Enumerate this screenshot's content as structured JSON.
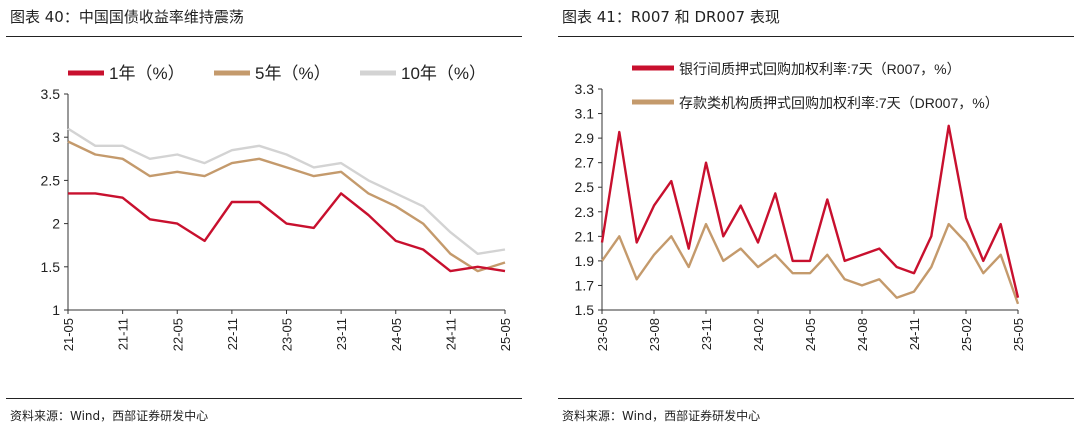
{
  "charts": [
    {
      "title": "图表 40：中国国债收益率维持震荡",
      "source": "资料来源：Wind，西部证券研发中心"
    },
    {
      "title": "图表 41：R007 和 DR007 表现",
      "source": "资料来源：Wind，西部证券研发中心"
    }
  ],
  "chart_data": [
    {
      "type": "line",
      "title": "中国国债收益率维持震荡",
      "xlabel": "",
      "ylabel": "",
      "ylim": [
        1,
        3.5
      ],
      "yticks": [
        "1",
        "1.5",
        "2",
        "2.5",
        "3",
        "3.5"
      ],
      "x": [
        "21-05",
        "21-08",
        "21-11",
        "22-02",
        "22-05",
        "22-08",
        "22-11",
        "23-02",
        "23-05",
        "23-08",
        "23-11",
        "24-02",
        "24-05",
        "24-08",
        "24-11",
        "25-02",
        "25-05"
      ],
      "xticks": [
        "21-05",
        "21-11",
        "22-05",
        "22-11",
        "23-05",
        "23-11",
        "24-05",
        "24-11",
        "25-05"
      ],
      "legend_position": "top",
      "series": [
        {
          "name": "1年（%）",
          "color": "#c8102e",
          "values": [
            2.35,
            2.35,
            2.3,
            2.05,
            2.0,
            1.8,
            2.25,
            2.25,
            2.0,
            1.95,
            2.35,
            2.1,
            1.8,
            1.7,
            1.45,
            1.5,
            1.45
          ]
        },
        {
          "name": "5年（%）",
          "color": "#c49a6c",
          "values": [
            2.95,
            2.8,
            2.75,
            2.55,
            2.6,
            2.55,
            2.7,
            2.75,
            2.65,
            2.55,
            2.6,
            2.35,
            2.2,
            2.0,
            1.65,
            1.45,
            1.55
          ]
        },
        {
          "name": "10年（%）",
          "color": "#d3d3d3",
          "values": [
            3.1,
            2.9,
            2.9,
            2.75,
            2.8,
            2.7,
            2.85,
            2.9,
            2.8,
            2.65,
            2.7,
            2.5,
            2.35,
            2.2,
            1.9,
            1.65,
            1.7
          ]
        }
      ]
    },
    {
      "type": "line",
      "title": "R007 和 DR007 表现",
      "xlabel": "",
      "ylabel": "",
      "ylim": [
        1.5,
        3.3
      ],
      "yticks": [
        "1.5",
        "1.7",
        "1.9",
        "2.1",
        "2.3",
        "2.5",
        "2.7",
        "2.9",
        "3.1",
        "3.3"
      ],
      "x": [
        "23-05",
        "23-06",
        "23-07",
        "23-08",
        "23-09",
        "23-10",
        "23-11",
        "23-12",
        "24-01",
        "24-02",
        "24-03",
        "24-04",
        "24-05",
        "24-06",
        "24-07",
        "24-08",
        "24-09",
        "24-10",
        "24-11",
        "24-12",
        "25-01",
        "25-02",
        "25-03",
        "25-04",
        "25-05"
      ],
      "xticks": [
        "23-05",
        "23-08",
        "23-11",
        "24-02",
        "24-05",
        "24-08",
        "24-11",
        "25-02",
        "25-05"
      ],
      "legend_position": "top-left",
      "series": [
        {
          "name": "银行间质押式回购加权利率:7天（R007，%）",
          "color": "#c8102e",
          "values": [
            2.05,
            2.95,
            2.05,
            2.35,
            2.55,
            2.0,
            2.7,
            2.1,
            2.35,
            2.05,
            2.45,
            1.9,
            1.9,
            2.4,
            1.9,
            1.95,
            2.0,
            1.85,
            1.8,
            2.1,
            3.0,
            2.25,
            1.9,
            2.2,
            1.6
          ]
        },
        {
          "name": "存款类机构质押式回购加权利率:7天（DR007，%）",
          "color": "#c49a6c",
          "values": [
            1.9,
            2.1,
            1.75,
            1.95,
            2.1,
            1.85,
            2.2,
            1.9,
            2.0,
            1.85,
            1.95,
            1.8,
            1.8,
            1.95,
            1.75,
            1.7,
            1.75,
            1.6,
            1.65,
            1.85,
            2.2,
            2.05,
            1.8,
            1.95,
            1.55
          ]
        }
      ]
    }
  ]
}
